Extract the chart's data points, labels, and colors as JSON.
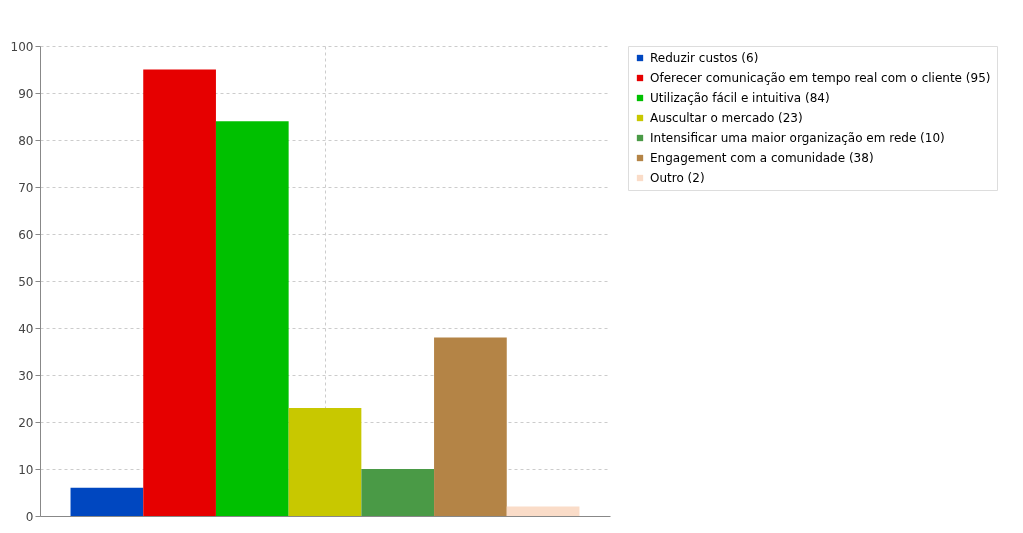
{
  "chart_data": {
    "type": "bar",
    "categories": [
      null
    ],
    "series": [
      {
        "name": "Reduzir custos (6)",
        "color": "#0047c0",
        "values": [
          6
        ]
      },
      {
        "name": "Oferecer comunicação em tempo real com o cliente (95)",
        "color": "#e60000",
        "values": [
          95
        ]
      },
      {
        "name": "Utilização fácil e intuitiva (84)",
        "color": "#00c000",
        "values": [
          84
        ]
      },
      {
        "name": "Auscultar o mercado (23)",
        "color": "#c8c800",
        "values": [
          23
        ]
      },
      {
        "name": "Intensificar uma maior organização em rede (10)",
        "color": "#4a9a46",
        "values": [
          10
        ]
      },
      {
        "name": "Engagement com a comunidade (38)",
        "color": "#b48446",
        "values": [
          38
        ]
      },
      {
        "name": "Outro (2)",
        "color": "#fadcc8",
        "values": [
          2
        ]
      }
    ],
    "ylim": [
      0,
      100
    ],
    "yticks": [
      0,
      10,
      20,
      30,
      40,
      50,
      60,
      70,
      80,
      90,
      100
    ],
    "grid": true,
    "legend": "right"
  }
}
